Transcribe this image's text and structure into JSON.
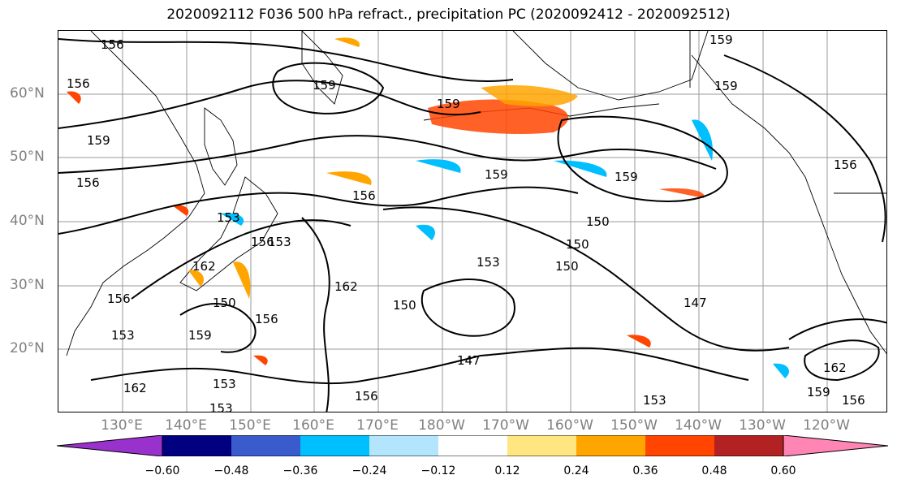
{
  "title": "2020092112 F036 500 hPa refract., precipitation PC (2020092412 - 2020092512)",
  "latitude_labels": [
    "60°N",
    "50°N",
    "40°N",
    "30°N",
    "20°N"
  ],
  "longitude_labels": [
    "130°E",
    "140°E",
    "150°E",
    "160°E",
    "170°E",
    "180°W",
    "170°W",
    "160°W",
    "150°W",
    "140°W",
    "130°W",
    "120°W"
  ],
  "contour_labels": [
    "156",
    "159",
    "159",
    "159",
    "156",
    "159",
    "159",
    "156",
    "159",
    "156",
    "156",
    "153",
    "159",
    "150",
    "150",
    "150",
    "150",
    "153",
    "153",
    "162",
    "162",
    "150",
    "156",
    "147",
    "156",
    "156",
    "153",
    "153",
    "153",
    "147",
    "162",
    "159",
    "156",
    "153",
    "156",
    "159",
    "162"
  ],
  "colorbar": {
    "tick_labels": [
      "−0.60",
      "−0.48",
      "−0.36",
      "−0.24",
      "−0.12",
      "0.12",
      "0.24",
      "0.36",
      "0.48",
      "0.60"
    ],
    "colors": [
      "#9932cc",
      "#000080",
      "#3a5bcc",
      "#00bfff",
      "#b3e5fc",
      "#ffffff",
      "#ffe680",
      "#ffa500",
      "#ff4500",
      "#b22222",
      "#ff85b4"
    ]
  }
}
